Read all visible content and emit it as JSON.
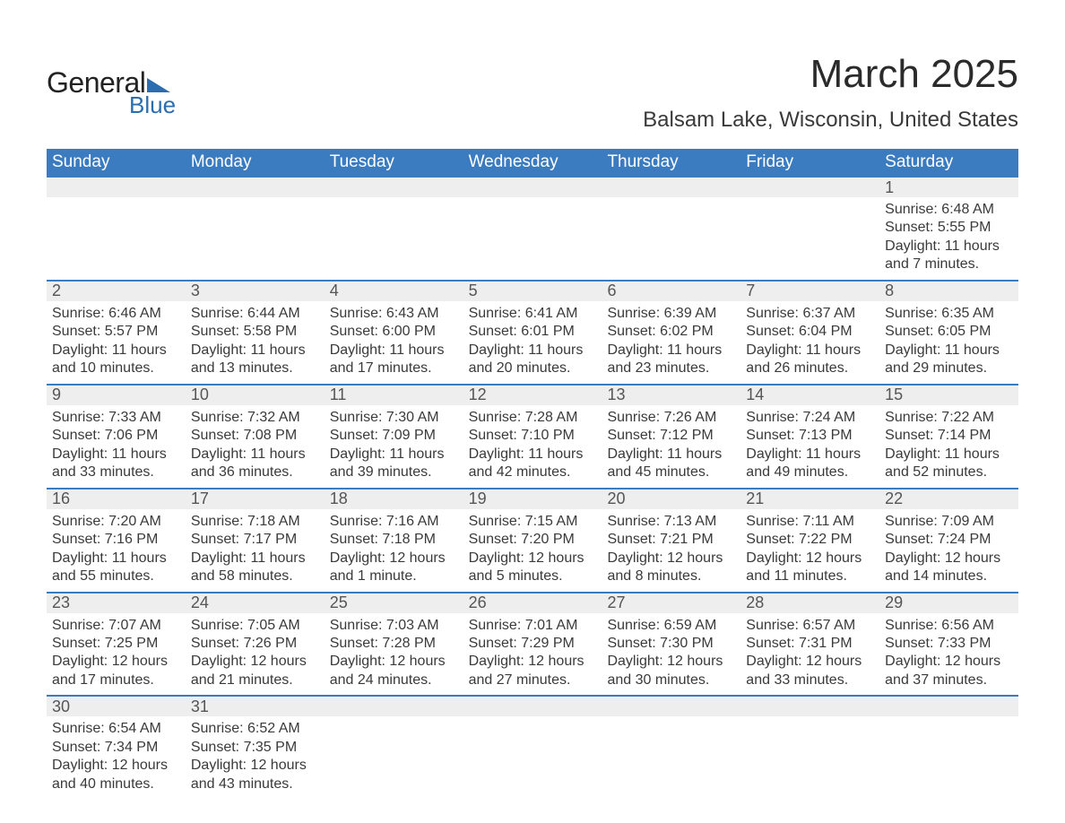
{
  "logo": {
    "text_general": "General",
    "text_blue": "Blue",
    "brand_color": "#2a6db0",
    "flag_color": "#2a6db0"
  },
  "title": "March 2025",
  "location": "Balsam Lake, Wisconsin, United States",
  "colors": {
    "header_bg": "#3b7bbf",
    "header_text": "#ffffff",
    "daynum_bg": "#eeeeee",
    "text": "#3a3a3a",
    "week_divider": "#3b7bbf",
    "page_bg": "#ffffff"
  },
  "typography": {
    "title_fontsize": 44,
    "location_fontsize": 24,
    "weekday_fontsize": 19,
    "daynum_fontsize": 18,
    "body_fontsize": 16
  },
  "weekdays": [
    "Sunday",
    "Monday",
    "Tuesday",
    "Wednesday",
    "Thursday",
    "Friday",
    "Saturday"
  ],
  "weeks": [
    [
      {
        "day": "",
        "sunrise": "",
        "sunset": "",
        "daylight1": "",
        "daylight2": ""
      },
      {
        "day": "",
        "sunrise": "",
        "sunset": "",
        "daylight1": "",
        "daylight2": ""
      },
      {
        "day": "",
        "sunrise": "",
        "sunset": "",
        "daylight1": "",
        "daylight2": ""
      },
      {
        "day": "",
        "sunrise": "",
        "sunset": "",
        "daylight1": "",
        "daylight2": ""
      },
      {
        "day": "",
        "sunrise": "",
        "sunset": "",
        "daylight1": "",
        "daylight2": ""
      },
      {
        "day": "",
        "sunrise": "",
        "sunset": "",
        "daylight1": "",
        "daylight2": ""
      },
      {
        "day": "1",
        "sunrise": "Sunrise: 6:48 AM",
        "sunset": "Sunset: 5:55 PM",
        "daylight1": "Daylight: 11 hours",
        "daylight2": "and 7 minutes."
      }
    ],
    [
      {
        "day": "2",
        "sunrise": "Sunrise: 6:46 AM",
        "sunset": "Sunset: 5:57 PM",
        "daylight1": "Daylight: 11 hours",
        "daylight2": "and 10 minutes."
      },
      {
        "day": "3",
        "sunrise": "Sunrise: 6:44 AM",
        "sunset": "Sunset: 5:58 PM",
        "daylight1": "Daylight: 11 hours",
        "daylight2": "and 13 minutes."
      },
      {
        "day": "4",
        "sunrise": "Sunrise: 6:43 AM",
        "sunset": "Sunset: 6:00 PM",
        "daylight1": "Daylight: 11 hours",
        "daylight2": "and 17 minutes."
      },
      {
        "day": "5",
        "sunrise": "Sunrise: 6:41 AM",
        "sunset": "Sunset: 6:01 PM",
        "daylight1": "Daylight: 11 hours",
        "daylight2": "and 20 minutes."
      },
      {
        "day": "6",
        "sunrise": "Sunrise: 6:39 AM",
        "sunset": "Sunset: 6:02 PM",
        "daylight1": "Daylight: 11 hours",
        "daylight2": "and 23 minutes."
      },
      {
        "day": "7",
        "sunrise": "Sunrise: 6:37 AM",
        "sunset": "Sunset: 6:04 PM",
        "daylight1": "Daylight: 11 hours",
        "daylight2": "and 26 minutes."
      },
      {
        "day": "8",
        "sunrise": "Sunrise: 6:35 AM",
        "sunset": "Sunset: 6:05 PM",
        "daylight1": "Daylight: 11 hours",
        "daylight2": "and 29 minutes."
      }
    ],
    [
      {
        "day": "9",
        "sunrise": "Sunrise: 7:33 AM",
        "sunset": "Sunset: 7:06 PM",
        "daylight1": "Daylight: 11 hours",
        "daylight2": "and 33 minutes."
      },
      {
        "day": "10",
        "sunrise": "Sunrise: 7:32 AM",
        "sunset": "Sunset: 7:08 PM",
        "daylight1": "Daylight: 11 hours",
        "daylight2": "and 36 minutes."
      },
      {
        "day": "11",
        "sunrise": "Sunrise: 7:30 AM",
        "sunset": "Sunset: 7:09 PM",
        "daylight1": "Daylight: 11 hours",
        "daylight2": "and 39 minutes."
      },
      {
        "day": "12",
        "sunrise": "Sunrise: 7:28 AM",
        "sunset": "Sunset: 7:10 PM",
        "daylight1": "Daylight: 11 hours",
        "daylight2": "and 42 minutes."
      },
      {
        "day": "13",
        "sunrise": "Sunrise: 7:26 AM",
        "sunset": "Sunset: 7:12 PM",
        "daylight1": "Daylight: 11 hours",
        "daylight2": "and 45 minutes."
      },
      {
        "day": "14",
        "sunrise": "Sunrise: 7:24 AM",
        "sunset": "Sunset: 7:13 PM",
        "daylight1": "Daylight: 11 hours",
        "daylight2": "and 49 minutes."
      },
      {
        "day": "15",
        "sunrise": "Sunrise: 7:22 AM",
        "sunset": "Sunset: 7:14 PM",
        "daylight1": "Daylight: 11 hours",
        "daylight2": "and 52 minutes."
      }
    ],
    [
      {
        "day": "16",
        "sunrise": "Sunrise: 7:20 AM",
        "sunset": "Sunset: 7:16 PM",
        "daylight1": "Daylight: 11 hours",
        "daylight2": "and 55 minutes."
      },
      {
        "day": "17",
        "sunrise": "Sunrise: 7:18 AM",
        "sunset": "Sunset: 7:17 PM",
        "daylight1": "Daylight: 11 hours",
        "daylight2": "and 58 minutes."
      },
      {
        "day": "18",
        "sunrise": "Sunrise: 7:16 AM",
        "sunset": "Sunset: 7:18 PM",
        "daylight1": "Daylight: 12 hours",
        "daylight2": "and 1 minute."
      },
      {
        "day": "19",
        "sunrise": "Sunrise: 7:15 AM",
        "sunset": "Sunset: 7:20 PM",
        "daylight1": "Daylight: 12 hours",
        "daylight2": "and 5 minutes."
      },
      {
        "day": "20",
        "sunrise": "Sunrise: 7:13 AM",
        "sunset": "Sunset: 7:21 PM",
        "daylight1": "Daylight: 12 hours",
        "daylight2": "and 8 minutes."
      },
      {
        "day": "21",
        "sunrise": "Sunrise: 7:11 AM",
        "sunset": "Sunset: 7:22 PM",
        "daylight1": "Daylight: 12 hours",
        "daylight2": "and 11 minutes."
      },
      {
        "day": "22",
        "sunrise": "Sunrise: 7:09 AM",
        "sunset": "Sunset: 7:24 PM",
        "daylight1": "Daylight: 12 hours",
        "daylight2": "and 14 minutes."
      }
    ],
    [
      {
        "day": "23",
        "sunrise": "Sunrise: 7:07 AM",
        "sunset": "Sunset: 7:25 PM",
        "daylight1": "Daylight: 12 hours",
        "daylight2": "and 17 minutes."
      },
      {
        "day": "24",
        "sunrise": "Sunrise: 7:05 AM",
        "sunset": "Sunset: 7:26 PM",
        "daylight1": "Daylight: 12 hours",
        "daylight2": "and 21 minutes."
      },
      {
        "day": "25",
        "sunrise": "Sunrise: 7:03 AM",
        "sunset": "Sunset: 7:28 PM",
        "daylight1": "Daylight: 12 hours",
        "daylight2": "and 24 minutes."
      },
      {
        "day": "26",
        "sunrise": "Sunrise: 7:01 AM",
        "sunset": "Sunset: 7:29 PM",
        "daylight1": "Daylight: 12 hours",
        "daylight2": "and 27 minutes."
      },
      {
        "day": "27",
        "sunrise": "Sunrise: 6:59 AM",
        "sunset": "Sunset: 7:30 PM",
        "daylight1": "Daylight: 12 hours",
        "daylight2": "and 30 minutes."
      },
      {
        "day": "28",
        "sunrise": "Sunrise: 6:57 AM",
        "sunset": "Sunset: 7:31 PM",
        "daylight1": "Daylight: 12 hours",
        "daylight2": "and 33 minutes."
      },
      {
        "day": "29",
        "sunrise": "Sunrise: 6:56 AM",
        "sunset": "Sunset: 7:33 PM",
        "daylight1": "Daylight: 12 hours",
        "daylight2": "and 37 minutes."
      }
    ],
    [
      {
        "day": "30",
        "sunrise": "Sunrise: 6:54 AM",
        "sunset": "Sunset: 7:34 PM",
        "daylight1": "Daylight: 12 hours",
        "daylight2": "and 40 minutes."
      },
      {
        "day": "31",
        "sunrise": "Sunrise: 6:52 AM",
        "sunset": "Sunset: 7:35 PM",
        "daylight1": "Daylight: 12 hours",
        "daylight2": "and 43 minutes."
      },
      {
        "day": "",
        "sunrise": "",
        "sunset": "",
        "daylight1": "",
        "daylight2": ""
      },
      {
        "day": "",
        "sunrise": "",
        "sunset": "",
        "daylight1": "",
        "daylight2": ""
      },
      {
        "day": "",
        "sunrise": "",
        "sunset": "",
        "daylight1": "",
        "daylight2": ""
      },
      {
        "day": "",
        "sunrise": "",
        "sunset": "",
        "daylight1": "",
        "daylight2": ""
      },
      {
        "day": "",
        "sunrise": "",
        "sunset": "",
        "daylight1": "",
        "daylight2": ""
      }
    ]
  ]
}
